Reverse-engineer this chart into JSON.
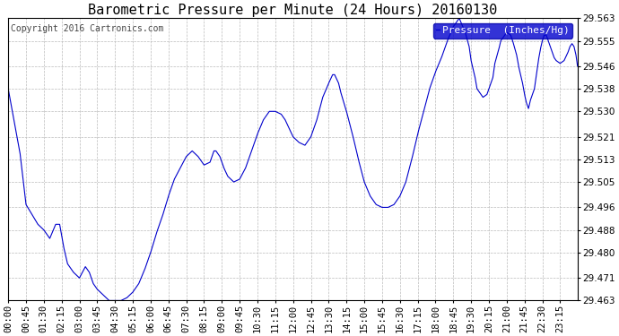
{
  "title": "Barometric Pressure per Minute (24 Hours) 20160130",
  "copyright": "Copyright 2016 Cartronics.com",
  "legend_label": "Pressure  (Inches/Hg)",
  "line_color": "#0000cc",
  "background_color": "#ffffff",
  "grid_color": "#bbbbbb",
  "ylim": [
    29.463,
    29.563
  ],
  "yticks": [
    29.463,
    29.471,
    29.48,
    29.488,
    29.496,
    29.505,
    29.513,
    29.521,
    29.53,
    29.538,
    29.546,
    29.555,
    29.563
  ],
  "xtick_labels": [
    "00:00",
    "00:45",
    "01:30",
    "02:15",
    "03:00",
    "03:45",
    "04:30",
    "05:15",
    "06:00",
    "06:45",
    "07:30",
    "08:15",
    "09:00",
    "09:45",
    "10:30",
    "11:15",
    "12:00",
    "12:45",
    "13:30",
    "14:15",
    "15:00",
    "15:45",
    "16:30",
    "17:15",
    "18:00",
    "18:45",
    "19:30",
    "20:15",
    "21:00",
    "21:45",
    "22:30",
    "23:15"
  ],
  "title_fontsize": 11,
  "copyright_fontsize": 7,
  "axis_fontsize": 7.5,
  "legend_fontsize": 8
}
